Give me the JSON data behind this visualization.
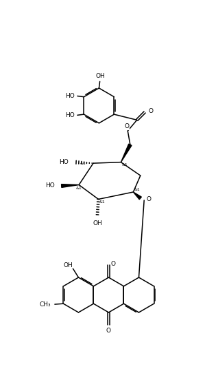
{
  "bg_color": "#ffffff",
  "line_color": "#000000",
  "lw": 1.1,
  "fs": 6.5,
  "fs_small": 5.0,
  "figsize": [
    2.99,
    5.55
  ],
  "dpi": 100,
  "xlim": [
    0,
    10
  ],
  "ylim": [
    0,
    18.5
  ]
}
